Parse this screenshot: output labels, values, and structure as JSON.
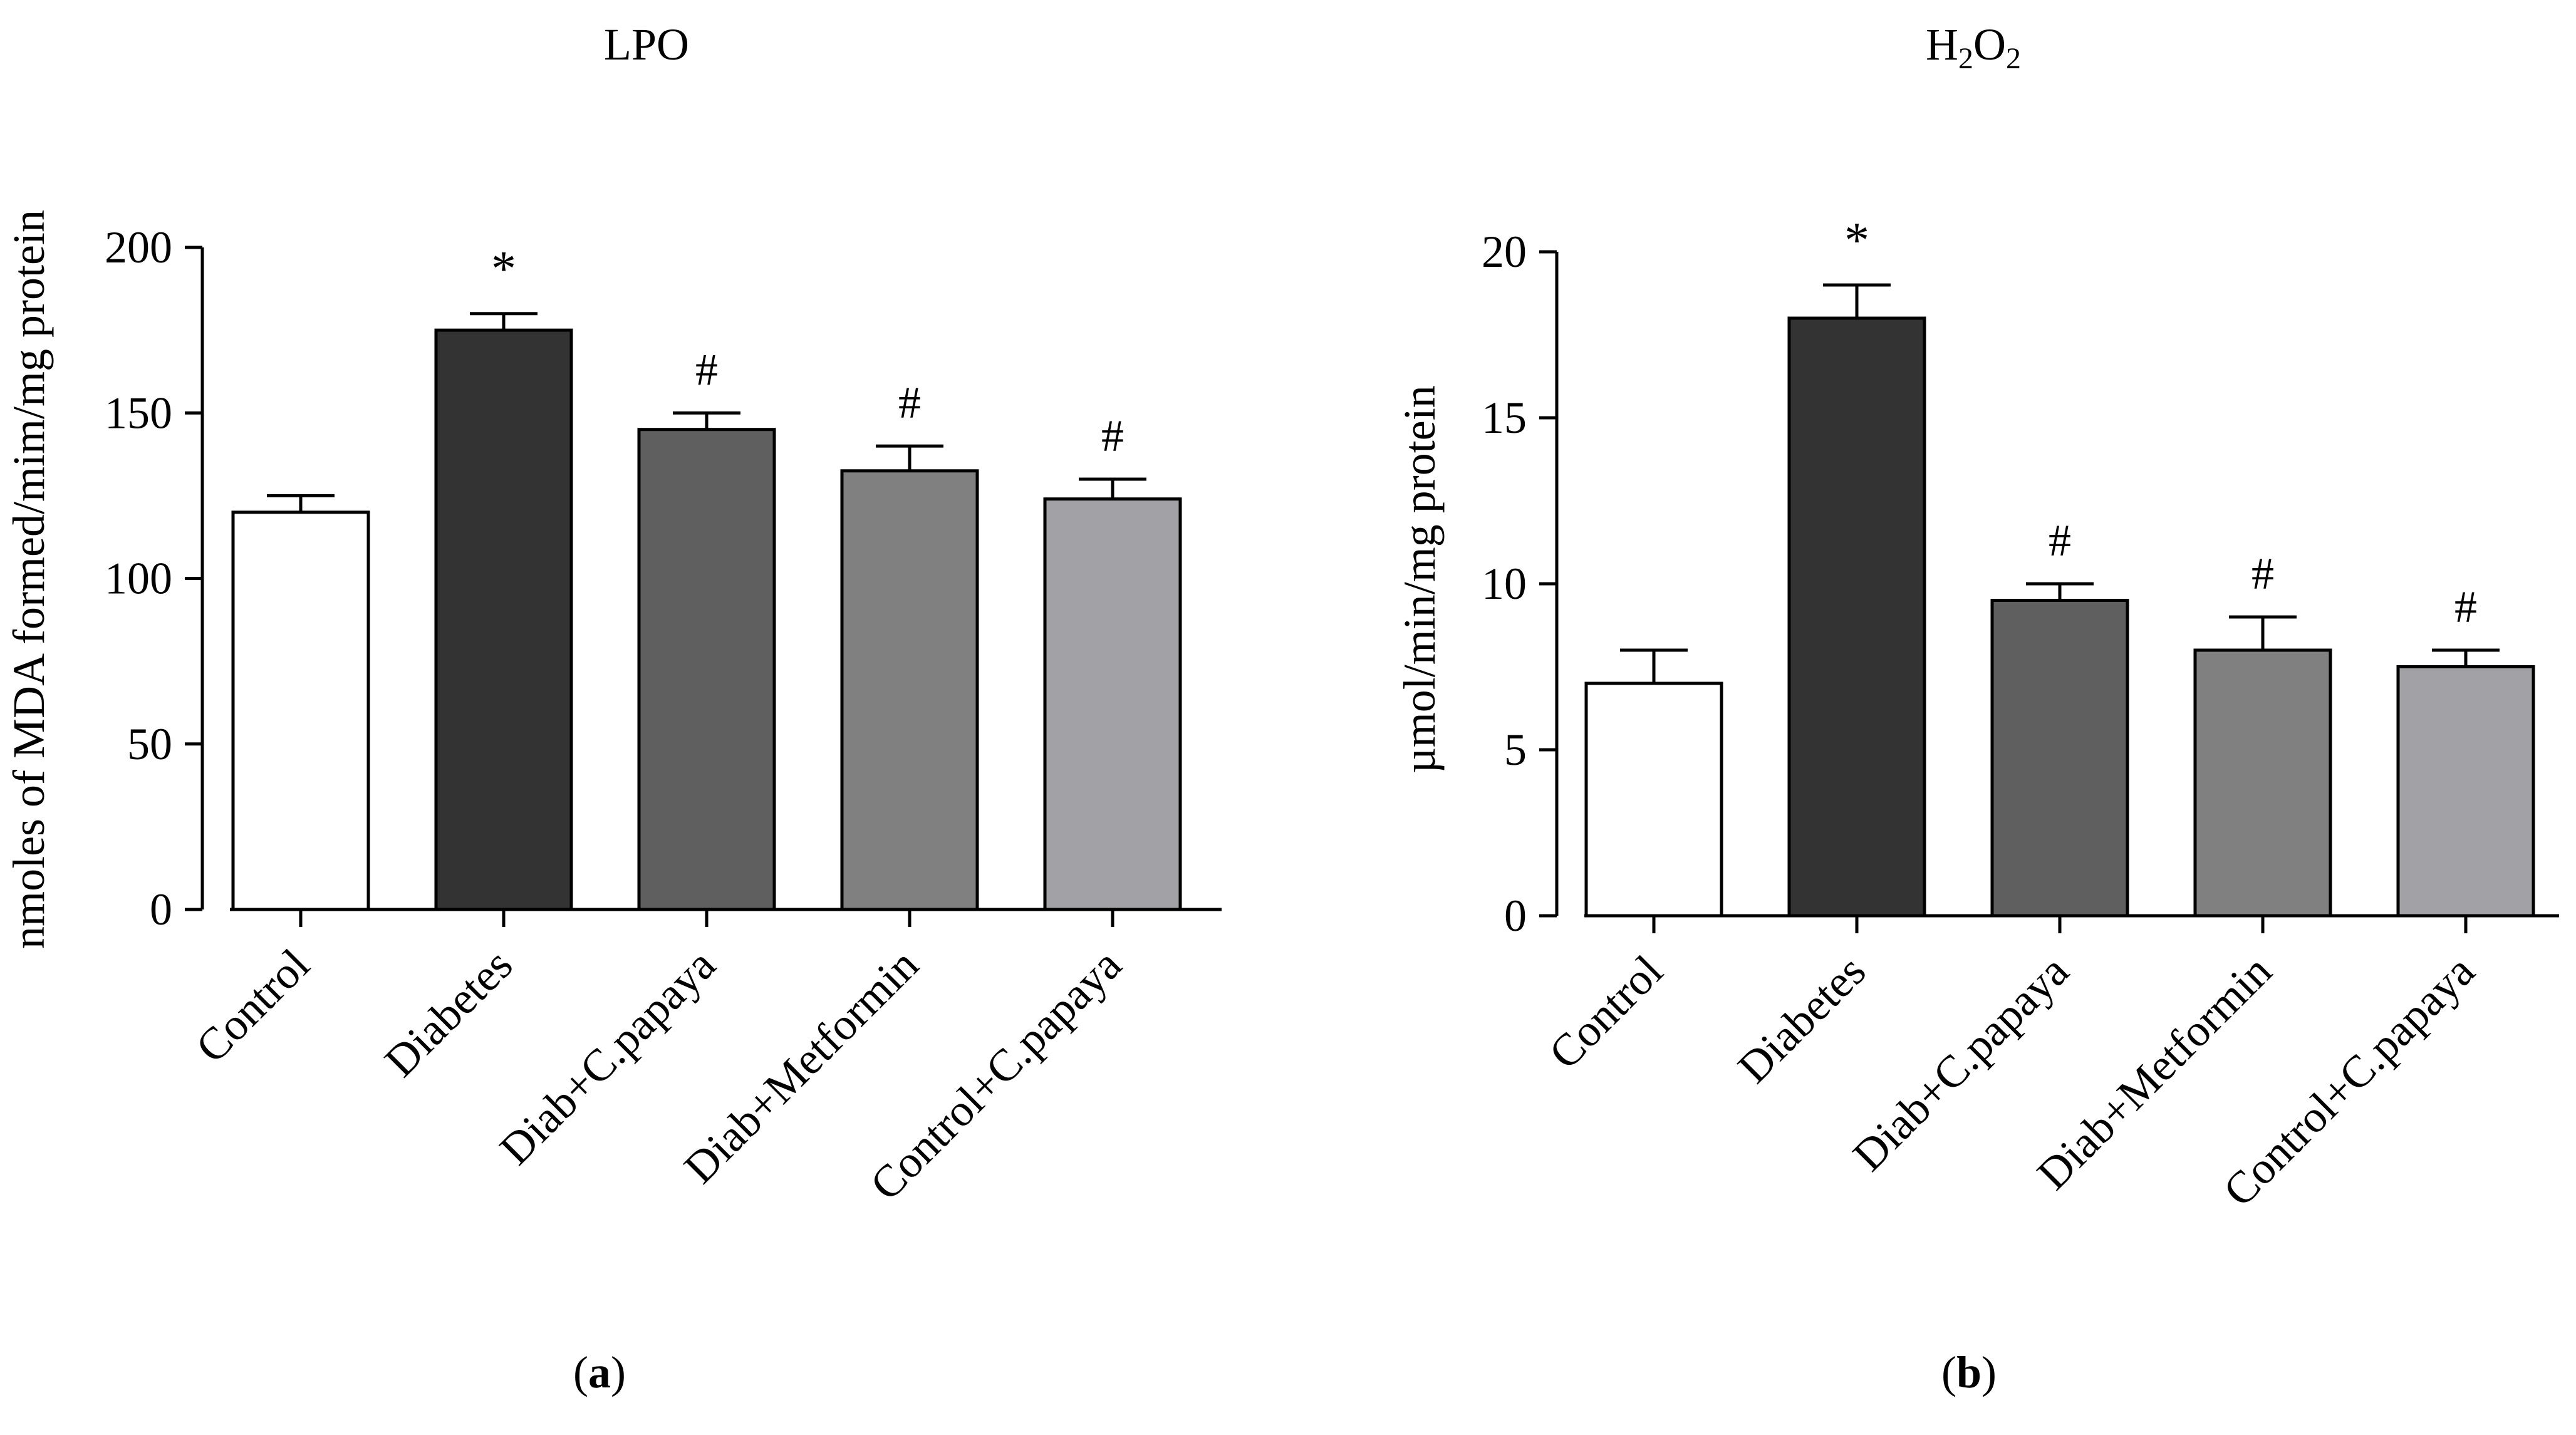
{
  "chart_data": [
    {
      "type": "bar",
      "panel_label": "a",
      "title": "LPO",
      "xlabel": "",
      "ylabel": "nmoles of MDA formed/mim/mg protein",
      "ylim": [
        0,
        200
      ],
      "yticks": [
        0,
        50,
        100,
        150,
        200
      ],
      "grid": false,
      "categories": [
        "Control",
        "Diabetes",
        "Diab+C.papaya",
        "Diab+Metformin",
        "Control+C.papaya"
      ],
      "values": [
        120,
        175,
        145,
        132.5,
        124
      ],
      "errors": [
        5,
        5,
        5,
        7.5,
        6
      ],
      "annotations": [
        "",
        "*",
        "#",
        "#",
        "#"
      ],
      "colors": [
        "#ffffff",
        "#333333",
        "#5f5f5f",
        "#808080",
        "#a2a2a6"
      ]
    },
    {
      "type": "bar",
      "panel_label": "b",
      "title": "H",
      "title_sub1": "2",
      "title_mid": "O",
      "title_sub2": "2",
      "xlabel": "",
      "ylabel": "µmol/min/mg protein",
      "ylim": [
        0,
        20
      ],
      "yticks": [
        0,
        5,
        10,
        15,
        20
      ],
      "grid": false,
      "categories": [
        "Control",
        "Diabetes",
        "Diab+C.papaya",
        "Diab+Metformin",
        "Control+C.papaya"
      ],
      "values": [
        7,
        18,
        9.5,
        8,
        7.5
      ],
      "errors": [
        1,
        1,
        0.5,
        1,
        0.5
      ],
      "annotations": [
        "",
        "*",
        "#",
        "#",
        "#"
      ],
      "colors": [
        "#ffffff",
        "#333333",
        "#5f5f5f",
        "#808080",
        "#a2a2a6"
      ]
    }
  ]
}
